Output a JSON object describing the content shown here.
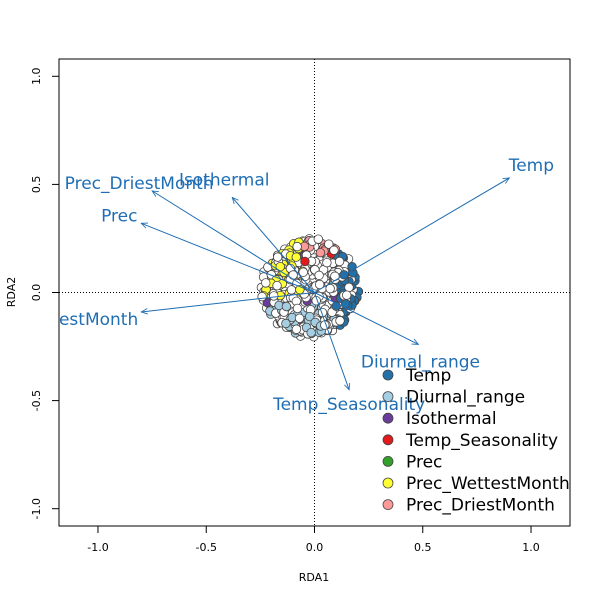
{
  "chart_data": {
    "type": "scatter",
    "xlabel": "RDA1",
    "ylabel": "RDA2",
    "xlim": [
      -1.18,
      1.18
    ],
    "ylim": [
      -1.08,
      1.08
    ],
    "xticks": [
      -1.0,
      -0.5,
      0.0,
      0.5,
      1.0
    ],
    "yticks": [
      -1.0,
      -0.5,
      0.0,
      0.5,
      1.0
    ],
    "xtick_labels": [
      "-1.0",
      "-0.5",
      "0.0",
      "0.5",
      "1.0"
    ],
    "ytick_labels": [
      "-1.0",
      "-0.5",
      "0.0",
      "0.5",
      "1.0"
    ],
    "reference_lines": {
      "x": 0,
      "y": 0,
      "style": "dotted"
    },
    "point_cloud": {
      "center": [
        -0.02,
        0.02
      ],
      "x_range": [
        -0.24,
        0.22
      ],
      "y_range": [
        -0.2,
        0.27
      ]
    },
    "arrows": [
      {
        "label": "Temp",
        "x": 0.9,
        "y": 0.53
      },
      {
        "label": "Diurnal_range",
        "x": 0.48,
        "y": -0.24
      },
      {
        "label": "Isothermal",
        "x": -0.38,
        "y": 0.44
      },
      {
        "label": "Temp_Seasonality",
        "x": 0.16,
        "y": -0.45
      },
      {
        "label": "Prec",
        "x": -0.8,
        "y": 0.32
      },
      {
        "label": "Prec_WettestMonth",
        "x": -0.8,
        "y": -0.09
      },
      {
        "label": "Prec_DriestMonth",
        "x": -0.75,
        "y": 0.47
      }
    ],
    "arrow_label_text": {
      "Temp": "Temp",
      "Diurnal_range": "Diurnal_range",
      "Isothermal": "Isothermal",
      "Temp_Seasonality": "Temp_Seasonality",
      "Prec": "Prec",
      "Prec_WettestMonth": "testMonth",
      "Prec_DriestMonth": "Prec_DriestMonth"
    },
    "legend": {
      "placement": "bottom-right",
      "entries": [
        {
          "name": "Temp",
          "color": "#2470a8"
        },
        {
          "name": "Diurnal_range",
          "color": "#a6cee3"
        },
        {
          "name": "Isothermal",
          "color": "#6a3d9a"
        },
        {
          "name": "Temp_Seasonality",
          "color": "#e31a1c"
        },
        {
          "name": "Prec",
          "color": "#33a02c"
        },
        {
          "name": "Prec_WettestMonth",
          "color": "#ffff33"
        },
        {
          "name": "Prec_DriestMonth",
          "color": "#fb9a99"
        }
      ]
    },
    "sample_color": "#ffffff",
    "arrow_color": "#1f6eb4"
  }
}
